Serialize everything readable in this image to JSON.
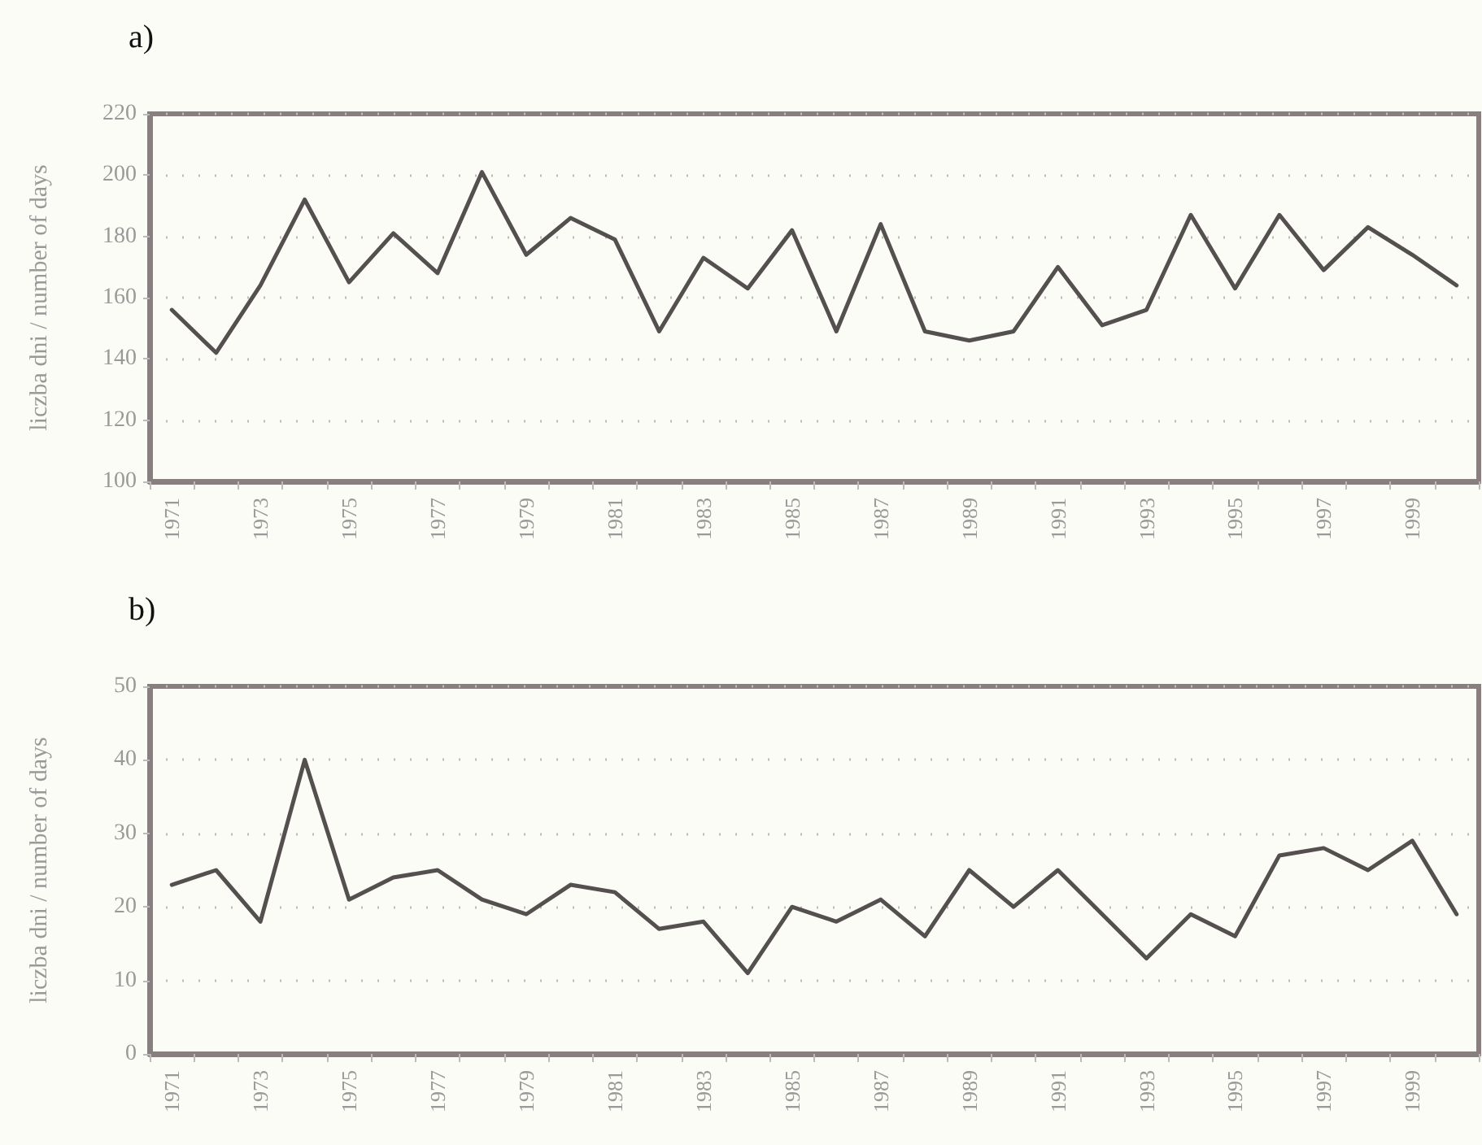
{
  "chart_data": [
    {
      "type": "line",
      "title": "a)",
      "ylabel": "liczba dni / number of days",
      "categories": [
        "1971",
        null,
        "1973",
        null,
        "1975",
        null,
        "1977",
        null,
        "1979",
        null,
        "1981",
        null,
        "1983",
        null,
        "1985",
        null,
        "1987",
        null,
        "1989",
        null,
        "1991",
        null,
        "1993",
        null,
        "1995",
        null,
        "1997",
        null,
        "1999",
        null
      ],
      "series": [
        {
          "color": "#555050",
          "values": [
            156,
            142,
            164,
            192,
            165,
            181,
            168,
            201,
            174,
            186,
            179,
            149,
            173,
            163,
            182,
            149,
            184,
            149,
            146,
            149,
            170,
            151,
            156,
            187,
            163,
            187,
            169,
            183,
            174,
            164
          ]
        }
      ],
      "ylim": [
        100,
        220
      ],
      "yticks": [
        100,
        120,
        140,
        160,
        180,
        200,
        220
      ],
      "grid": "y",
      "marker": "none",
      "line_style": "solid"
    },
    {
      "type": "line",
      "title": "b)",
      "ylabel": "liczba dni / number of days",
      "categories": [
        "1971",
        null,
        "1973",
        null,
        "1975",
        null,
        "1977",
        null,
        "1979",
        null,
        "1981",
        null,
        "1983",
        null,
        "1985",
        null,
        "1987",
        null,
        "1989",
        null,
        "1991",
        null,
        "1993",
        null,
        "1995",
        null,
        "1997",
        null,
        "1999",
        null
      ],
      "series": [
        {
          "color": "#555050",
          "values": [
            23,
            25,
            18,
            40,
            21,
            24,
            25,
            21,
            19,
            23,
            22,
            17,
            18,
            11,
            20,
            18,
            21,
            16,
            25,
            20,
            25,
            19,
            13,
            19,
            16,
            27,
            28,
            25,
            29,
            19
          ]
        }
      ],
      "ylim": [
        0,
        50
      ],
      "yticks": [
        0,
        10,
        20,
        30,
        40,
        50
      ],
      "grid": "y",
      "marker": "none",
      "line_style": "solid"
    }
  ]
}
